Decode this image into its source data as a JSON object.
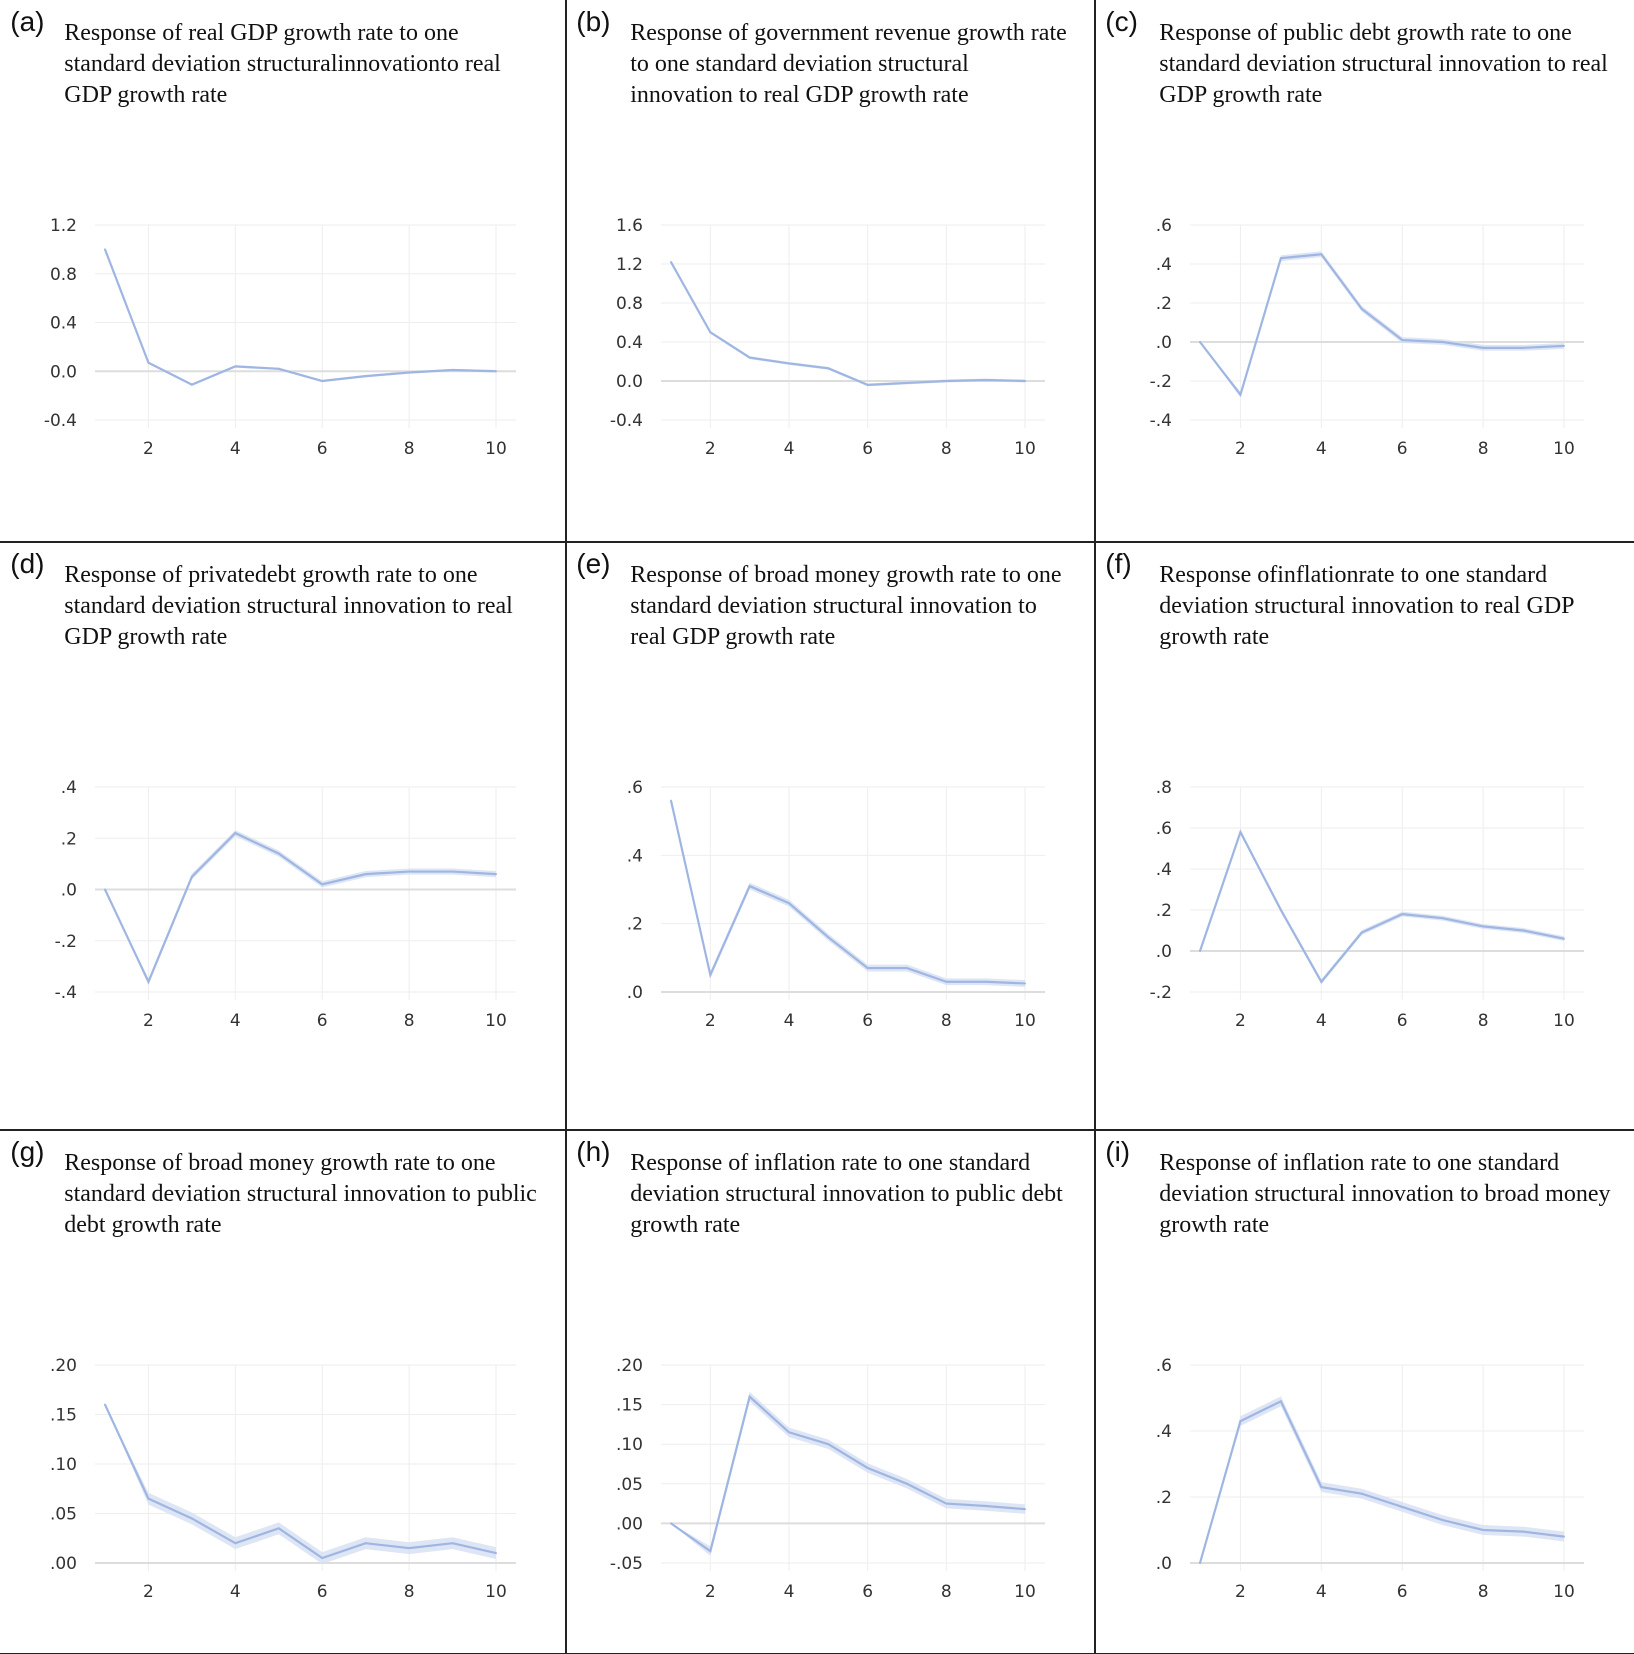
{
  "chart_data": [
    {
      "type": "line",
      "label": "(a)",
      "title": "Response of real GDP growth rate to one standard deviation structuralinnovationto real GDP growth rate",
      "x": [
        1,
        2,
        3,
        4,
        5,
        6,
        7,
        8,
        9,
        10
      ],
      "values": [
        1.0,
        0.07,
        -0.11,
        0.04,
        0.02,
        -0.08,
        -0.04,
        -0.01,
        0.01,
        0.0
      ],
      "ylim": [
        -0.4,
        1.2
      ],
      "yticks": [
        "-0.4",
        "0.0",
        "0.4",
        "0.8",
        "1.2"
      ],
      "ytick_values": [
        -0.4,
        0,
        0.4,
        0.8,
        1.2
      ],
      "xticks": [
        "2",
        "4",
        "6",
        "8",
        "10"
      ],
      "band": 0.01,
      "grid": true
    },
    {
      "type": "line",
      "label": "(b)",
      "title": "Response of government revenue growth rate to one standard deviation structural innovation to real GDP growth rate",
      "x": [
        1,
        2,
        3,
        4,
        5,
        6,
        7,
        8,
        9,
        10
      ],
      "values": [
        1.22,
        0.5,
        0.24,
        0.18,
        0.13,
        -0.04,
        -0.02,
        0.0,
        0.01,
        0.0
      ],
      "ylim": [
        -0.4,
        1.6
      ],
      "yticks": [
        "-0.4",
        "0.0",
        "0.4",
        "0.8",
        "1.2",
        "1.6"
      ],
      "ytick_values": [
        -0.4,
        0,
        0.4,
        0.8,
        1.2,
        1.6
      ],
      "xticks": [
        "2",
        "4",
        "6",
        "8",
        "10"
      ],
      "band": 0.015,
      "grid": true
    },
    {
      "type": "line",
      "label": "(c)",
      "title": "Response of public debt growth rate to one standard deviation structural innovation to real GDP growth rate",
      "x": [
        1,
        2,
        3,
        4,
        5,
        6,
        7,
        8,
        9,
        10
      ],
      "values": [
        0.0,
        -0.27,
        0.43,
        0.45,
        0.17,
        0.01,
        0.0,
        -0.03,
        -0.03,
        -0.02
      ],
      "ylim": [
        -0.4,
        0.6
      ],
      "yticks": [
        "-.4",
        "-.2",
        ".0",
        ".2",
        ".4",
        ".6"
      ],
      "ytick_values": [
        -0.4,
        -0.2,
        0,
        0.2,
        0.4,
        0.6
      ],
      "xticks": [
        "2",
        "4",
        "6",
        "8",
        "10"
      ],
      "band": 0.015,
      "grid": true
    },
    {
      "type": "line",
      "label": "(d)",
      "title": "Response of privatedebt growth rate to one standard deviation structural innovation to real GDP growth rate",
      "x": [
        1,
        2,
        3,
        4,
        5,
        6,
        7,
        8,
        9,
        10
      ],
      "values": [
        0.0,
        -0.36,
        0.05,
        0.22,
        0.14,
        0.02,
        0.06,
        0.07,
        0.07,
        0.06
      ],
      "ylim": [
        -0.4,
        0.4
      ],
      "yticks": [
        "-.4",
        "-.2",
        ".0",
        ".2",
        ".4"
      ],
      "ytick_values": [
        -0.4,
        -0.2,
        0,
        0.2,
        0.4
      ],
      "xticks": [
        "2",
        "4",
        "6",
        "8",
        "10"
      ],
      "band": 0.012,
      "grid": true
    },
    {
      "type": "line",
      "label": "(e)",
      "title": "Response of broad money growth rate to one standard deviation structural innovation to real GDP growth rate",
      "x": [
        1,
        2,
        3,
        4,
        5,
        6,
        7,
        8,
        9,
        10
      ],
      "values": [
        0.56,
        0.05,
        0.31,
        0.26,
        0.16,
        0.07,
        0.07,
        0.03,
        0.03,
        0.025
      ],
      "ylim": [
        0.0,
        0.6
      ],
      "yticks": [
        ".0",
        ".2",
        ".4",
        ".6"
      ],
      "ytick_values": [
        0,
        0.2,
        0.4,
        0.6
      ],
      "xticks": [
        "2",
        "4",
        "6",
        "8",
        "10"
      ],
      "band": 0.01,
      "grid": true
    },
    {
      "type": "line",
      "label": "(f)",
      "title": "Response ofinflationrate to one standard deviation structural innovation to real GDP growth rate",
      "x": [
        1,
        2,
        3,
        4,
        5,
        6,
        7,
        8,
        9,
        10
      ],
      "values": [
        0.0,
        0.58,
        0.2,
        -0.15,
        0.09,
        0.18,
        0.16,
        0.12,
        0.1,
        0.06
      ],
      "ylim": [
        -0.2,
        0.8
      ],
      "yticks": [
        "-.2",
        ".0",
        ".2",
        ".4",
        ".6",
        ".8"
      ],
      "ytick_values": [
        -0.2,
        0,
        0.2,
        0.4,
        0.6,
        0.8
      ],
      "xticks": [
        "2",
        "4",
        "6",
        "8",
        "10"
      ],
      "band": 0.012,
      "grid": true
    },
    {
      "type": "line",
      "label": "(g)",
      "title": "Response of broad money growth rate to one standard deviation structural innovation to public debt growth rate",
      "x": [
        1,
        2,
        3,
        4,
        5,
        6,
        7,
        8,
        9,
        10
      ],
      "values": [
        0.16,
        0.065,
        0.045,
        0.02,
        0.035,
        0.005,
        0.02,
        0.015,
        0.02,
        0.01
      ],
      "ylim": [
        0.0,
        0.2
      ],
      "yticks": [
        ".00",
        ".05",
        ".10",
        ".15",
        ".20"
      ],
      "ytick_values": [
        0,
        0.05,
        0.1,
        0.15,
        0.2
      ],
      "xticks": [
        "2",
        "4",
        "6",
        "8",
        "10"
      ],
      "band": 0.006,
      "grid": true
    },
    {
      "type": "line",
      "label": "(h)",
      "title": "Response of inflation rate to one standard deviation structural innovation to public debt growth rate",
      "x": [
        1,
        2,
        3,
        4,
        5,
        6,
        7,
        8,
        9,
        10
      ],
      "values": [
        0.0,
        -0.035,
        0.16,
        0.115,
        0.1,
        0.07,
        0.05,
        0.025,
        0.022,
        0.018
      ],
      "ylim": [
        -0.05,
        0.2
      ],
      "yticks": [
        "-.05",
        ".00",
        ".05",
        ".10",
        ".15",
        ".20"
      ],
      "ytick_values": [
        -0.05,
        0,
        0.05,
        0.1,
        0.15,
        0.2
      ],
      "xticks": [
        "2",
        "4",
        "6",
        "8",
        "10"
      ],
      "band": 0.006,
      "grid": true
    },
    {
      "type": "line",
      "label": "(i)",
      "title": "Response of inflation rate to one standard deviation structural innovation to broad money growth rate",
      "x": [
        1,
        2,
        3,
        4,
        5,
        6,
        7,
        8,
        9,
        10
      ],
      "values": [
        0.0,
        0.43,
        0.49,
        0.23,
        0.21,
        0.17,
        0.13,
        0.1,
        0.095,
        0.08
      ],
      "ylim": [
        0.0,
        0.6
      ],
      "yticks": [
        ".0",
        ".2",
        ".4",
        ".6"
      ],
      "ytick_values": [
        0,
        0.2,
        0.4,
        0.6
      ],
      "xticks": [
        "2",
        "4",
        "6",
        "8",
        "10"
      ],
      "band": 0.015,
      "grid": true
    }
  ],
  "colors": {
    "line": "#9fb6e2",
    "band": "#d6e0f3",
    "grid": "#eeeeee",
    "zero": "#dddddd"
  }
}
